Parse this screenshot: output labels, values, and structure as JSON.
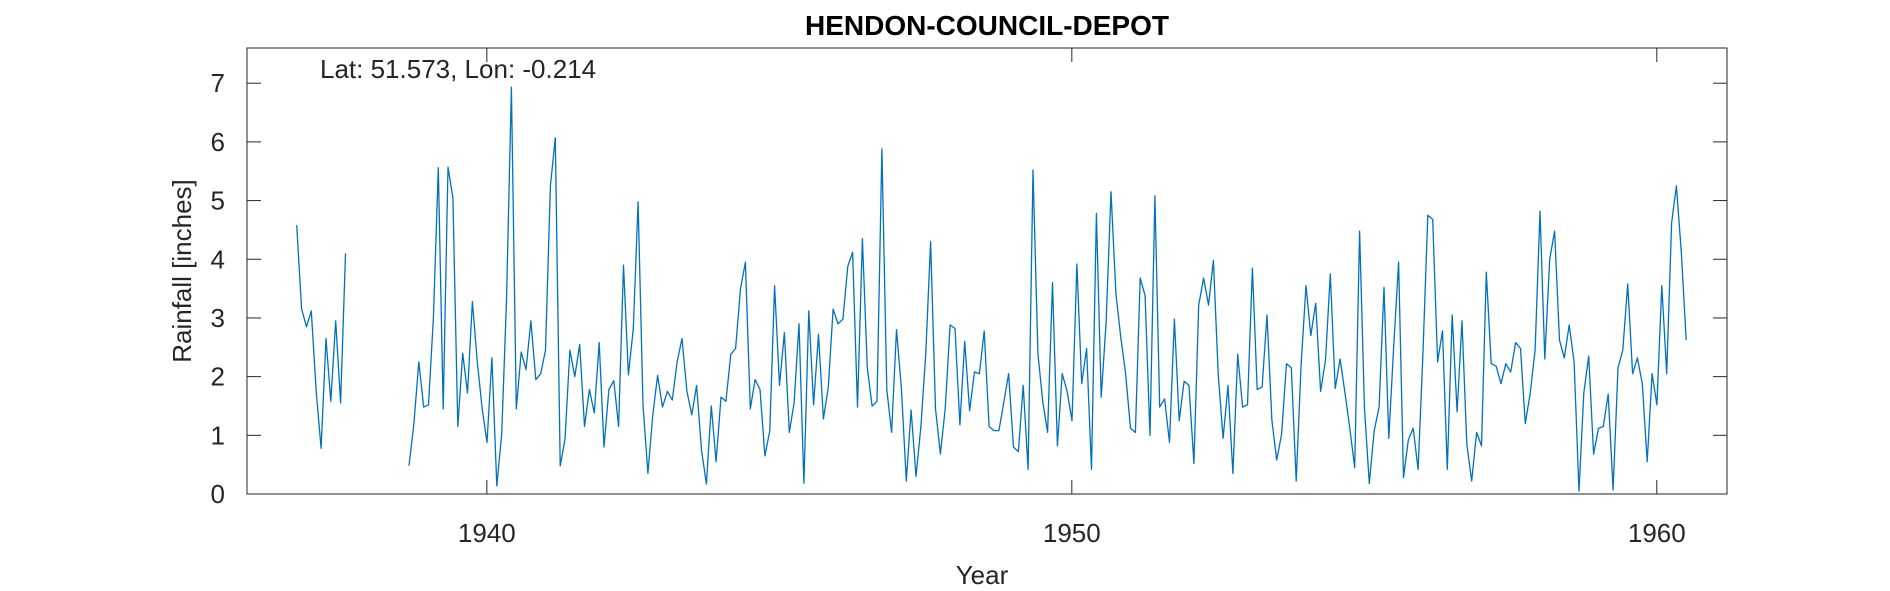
{
  "chart_data": {
    "type": "line",
    "title": "HENDON-COUNCIL-DEPOT",
    "annotation": "Lat: 51.573, Lon: -0.214",
    "xlabel": "Year",
    "ylabel": "Rainfall [inches]",
    "xlim": [
      1935.9,
      1961.2
    ],
    "ylim": [
      0,
      7.6
    ],
    "xticks": [
      1940,
      1950,
      1960
    ],
    "yticks": [
      0,
      1,
      2,
      3,
      4,
      5,
      6,
      7
    ],
    "grid": false,
    "line_color": "#0072BD",
    "series": [
      {
        "segments": [
          {
            "start": 1936.75,
            "step": 0.08333,
            "values": [
              4.58,
              3.15,
              2.85,
              3.12,
              1.75,
              0.78,
              2.65,
              1.58,
              2.95,
              1.55,
              4.1
            ]
          },
          {
            "start": 1938.67,
            "step": 0.08333,
            "values": [
              0.48,
              1.2,
              2.25,
              1.48,
              1.52,
              3.0,
              5.56,
              1.45,
              5.57,
              5.05,
              1.15,
              2.4,
              1.72,
              3.28,
              2.25,
              1.45,
              0.88,
              2.32,
              0.14,
              1.02,
              3.3,
              6.93,
              1.45,
              2.42,
              2.12,
              2.95,
              1.95,
              2.05,
              2.45,
              5.25,
              6.07,
              0.48,
              0.93,
              2.45,
              2.0,
              2.55,
              1.15,
              1.78,
              1.38,
              2.58,
              0.8,
              1.78,
              1.93,
              1.15,
              3.9,
              2.03,
              2.82,
              4.98,
              1.52,
              0.35,
              1.35,
              2.02,
              1.48,
              1.75,
              1.6,
              2.25,
              2.65,
              1.75,
              1.35,
              1.85,
              0.75,
              0.17,
              1.5,
              0.55,
              1.65,
              1.58,
              2.38,
              2.48,
              3.5,
              3.95,
              1.45,
              1.95,
              1.78,
              0.65,
              1.08,
              3.55,
              1.85,
              2.75,
              1.05,
              1.55,
              2.9,
              0.18,
              3.12,
              1.52,
              2.72,
              1.28,
              1.82,
              3.15,
              2.9,
              2.98,
              3.88,
              4.12,
              1.48,
              4.35,
              2.15,
              1.5,
              1.58,
              5.88,
              1.78,
              1.05,
              2.8,
              1.8,
              0.22,
              1.43,
              0.3,
              1.15,
              2.4,
              4.3,
              1.45,
              0.68,
              1.45,
              2.88,
              2.82,
              1.18,
              2.6,
              1.42,
              2.08,
              2.05,
              2.78,
              1.15,
              1.08,
              1.08,
              1.55,
              2.05,
              0.8,
              0.72,
              1.85,
              0.42,
              5.52,
              2.4,
              1.58,
              1.05,
              3.6,
              0.82,
              2.05,
              1.75,
              1.25,
              3.92,
              1.88,
              2.48,
              0.42,
              4.78,
              1.65,
              2.92,
              5.15,
              3.42,
              2.68,
              2.05,
              1.12,
              1.05,
              3.68,
              3.38,
              1.0,
              5.08,
              1.48,
              1.62,
              0.88,
              2.98,
              1.25,
              1.92,
              1.85,
              0.52,
              3.22,
              3.68,
              3.22,
              3.98,
              2.05,
              0.95,
              1.85,
              0.35,
              2.38,
              1.48,
              1.52,
              3.85,
              1.78,
              1.82,
              3.05,
              1.25,
              0.58,
              1.02,
              2.22,
              2.15,
              0.22,
              2.2,
              3.55,
              2.7,
              3.25,
              1.75,
              2.28,
              3.75,
              1.8,
              2.3,
              1.72,
              1.12,
              0.45,
              4.48,
              1.45,
              0.18,
              1.08,
              1.48,
              3.52,
              0.95,
              2.52,
              3.95,
              0.28,
              0.92,
              1.12,
              0.42,
              2.42,
              4.75,
              4.68,
              2.25,
              2.78,
              0.42,
              3.05,
              1.4,
              2.95,
              0.85,
              0.22,
              1.05,
              0.82,
              3.78,
              2.22,
              2.18,
              1.88,
              2.22,
              2.08,
              2.58,
              2.48,
              1.2,
              1.72,
              2.45,
              4.82,
              2.3,
              4.0,
              4.48,
              2.62,
              2.32,
              2.88,
              2.25,
              0.05,
              1.72,
              2.35,
              0.68,
              1.12,
              1.15,
              1.7,
              0.07,
              2.15,
              2.45,
              3.58,
              2.05,
              2.32,
              1.88,
              0.55,
              2.05,
              1.52,
              3.55,
              2.05,
              4.62,
              5.25,
              4.12,
              2.62
            ]
          }
        ]
      }
    ]
  }
}
